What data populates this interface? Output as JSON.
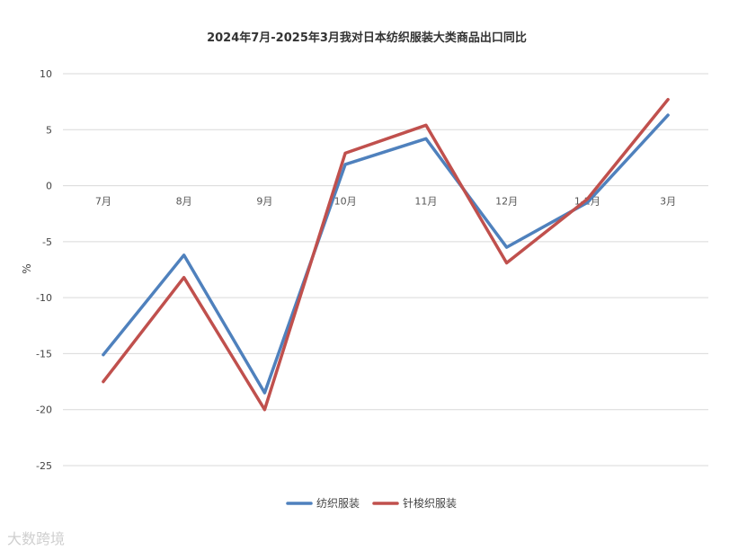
{
  "chart_data": {
    "type": "line",
    "title": "2024年7月-2025年3月我对日本纺织服装大类商品出口同比",
    "ylabel": "%",
    "xlabel": "",
    "categories": [
      "7月",
      "8月",
      "9月",
      "10月",
      "11月",
      "12月",
      "1-2月",
      "3月"
    ],
    "ylim": [
      -25,
      10
    ],
    "yticks": [
      10,
      5,
      0,
      -5,
      -10,
      -15,
      -20,
      -25
    ],
    "grid": true,
    "legend_position": "bottom",
    "series": [
      {
        "name": "纺织服装",
        "color": "#4f81bd",
        "values": [
          -15.1,
          -6.2,
          -18.5,
          1.9,
          4.2,
          -5.5,
          -1.5,
          6.3
        ]
      },
      {
        "name": "针梭织服装",
        "color": "#c0504d",
        "values": [
          -17.5,
          -8.2,
          -20.0,
          2.9,
          5.4,
          -6.9,
          -1.2,
          7.7
        ]
      }
    ]
  },
  "watermark": "大数跨境"
}
